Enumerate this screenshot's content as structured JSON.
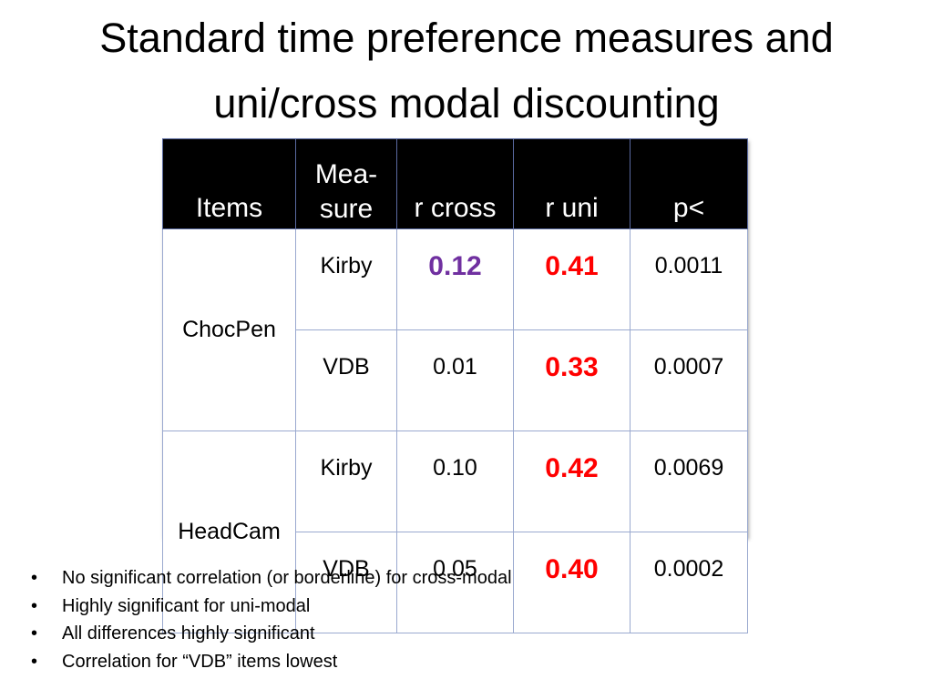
{
  "title": {
    "line1": "Standard time preference measures and",
    "line2": "uni/cross modal discounting"
  },
  "table": {
    "headers": {
      "items": "Items",
      "measure_line1": "Mea-",
      "measure_line2": "sure",
      "r_cross": "r cross",
      "r_uni": "r uni",
      "p": "p<"
    },
    "groups": [
      {
        "item": "ChocPen",
        "rows": [
          {
            "measure": "Kirby",
            "r_cross": "0.12",
            "r_uni": "0.41",
            "p": "0.0011"
          },
          {
            "measure": "VDB",
            "r_cross": "0.01",
            "r_uni": "0.33",
            "p": "0.0007"
          }
        ]
      },
      {
        "item": "HeadCam",
        "rows": [
          {
            "measure": "Kirby",
            "r_cross": "0.10",
            "r_uni": "0.42",
            "p": "0.0069"
          },
          {
            "measure": "VDB",
            "r_cross": "0.05",
            "r_uni": "0.40",
            "p": "0.0002"
          }
        ]
      }
    ],
    "colors": {
      "highlight_cross": "#7030a0",
      "highlight_uni": "#ff0000",
      "header_bg": "#000000",
      "border": "#9aa9cf"
    }
  },
  "bullets": [
    "No significant correlation (or borderline) for cross-modal",
    "Highly significant for uni-modal",
    "All differences highly significant",
    "Correlation for “VDB” items lowest"
  ]
}
